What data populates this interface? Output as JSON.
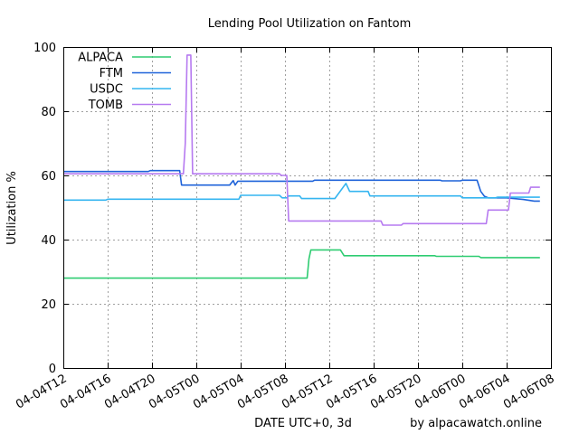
{
  "chart_data": {
    "type": "line",
    "title": "Lending Pool Utilization on Fantom",
    "xlabel": "DATE UTC+0, 3d",
    "ylabel": "Utilization %",
    "credit": "by alpacawatch.online",
    "ylim": [
      0,
      100
    ],
    "yticks": [
      0,
      20,
      40,
      60,
      80,
      100
    ],
    "xlim": [
      "2022-04-04T12:00",
      "2022-04-06T08:00"
    ],
    "xticks": [
      {
        "t": "2022-04-04T12:00",
        "label": "04-04T12"
      },
      {
        "t": "2022-04-04T16:00",
        "label": "04-04T16"
      },
      {
        "t": "2022-04-04T20:00",
        "label": "04-04T20"
      },
      {
        "t": "2022-04-05T00:00",
        "label": "04-05T00"
      },
      {
        "t": "2022-04-05T04:00",
        "label": "04-05T04"
      },
      {
        "t": "2022-04-05T08:00",
        "label": "04-05T08"
      },
      {
        "t": "2022-04-05T12:00",
        "label": "04-05T12"
      },
      {
        "t": "2022-04-05T16:00",
        "label": "04-05T16"
      },
      {
        "t": "2022-04-05T20:00",
        "label": "04-05T20"
      },
      {
        "t": "2022-04-06T00:00",
        "label": "04-06T00"
      },
      {
        "t": "2022-04-06T04:00",
        "label": "04-06T04"
      },
      {
        "t": "2022-04-06T08:00",
        "label": "04-06T08"
      }
    ],
    "grid": true,
    "legend": "top-left",
    "series": [
      {
        "name": "ALPACA",
        "color": "#2ecc71",
        "points": [
          [
            "2022-04-04T12:00",
            28
          ],
          [
            "2022-04-05T10:00",
            28
          ],
          [
            "2022-04-05T10:10",
            34
          ],
          [
            "2022-04-05T10:20",
            36.8
          ],
          [
            "2022-04-05T13:00",
            36.8
          ],
          [
            "2022-04-05T13:20",
            35
          ],
          [
            "2022-04-05T21:30",
            35
          ],
          [
            "2022-04-05T21:40",
            34.8
          ],
          [
            "2022-04-06T01:30",
            34.8
          ],
          [
            "2022-04-06T01:40",
            34.4
          ],
          [
            "2022-04-06T07:00",
            34.4
          ]
        ]
      },
      {
        "name": "FTM",
        "color": "#1f63d9",
        "points": [
          [
            "2022-04-04T12:00",
            61.2
          ],
          [
            "2022-04-04T19:40",
            61.2
          ],
          [
            "2022-04-04T19:50",
            61.5
          ],
          [
            "2022-04-04T22:30",
            61.5
          ],
          [
            "2022-04-04T22:40",
            57
          ],
          [
            "2022-04-05T03:00",
            57
          ],
          [
            "2022-04-05T03:20",
            58.4
          ],
          [
            "2022-04-05T03:30",
            57
          ],
          [
            "2022-04-05T03:45",
            58.2
          ],
          [
            "2022-04-05T10:30",
            58.2
          ],
          [
            "2022-04-05T10:40",
            58.5
          ],
          [
            "2022-04-05T22:00",
            58.5
          ],
          [
            "2022-04-05T22:10",
            58.3
          ],
          [
            "2022-04-05T23:50",
            58.3
          ],
          [
            "2022-04-06T00:00",
            58.5
          ],
          [
            "2022-04-06T01:20",
            58.5
          ],
          [
            "2022-04-06T01:40",
            55
          ],
          [
            "2022-04-06T02:00",
            53.5
          ],
          [
            "2022-04-06T02:20",
            53
          ],
          [
            "2022-04-06T04:00",
            53
          ],
          [
            "2022-04-06T05:30",
            52.5
          ],
          [
            "2022-04-06T06:30",
            52
          ],
          [
            "2022-04-06T07:00",
            52
          ]
        ]
      },
      {
        "name": "USDC",
        "color": "#35b5f0",
        "points": [
          [
            "2022-04-04T12:00",
            52.3
          ],
          [
            "2022-04-04T15:50",
            52.3
          ],
          [
            "2022-04-04T16:00",
            52.6
          ],
          [
            "2022-04-05T03:50",
            52.6
          ],
          [
            "2022-04-05T04:00",
            53.8
          ],
          [
            "2022-04-05T07:30",
            53.8
          ],
          [
            "2022-04-05T07:45",
            53
          ],
          [
            "2022-04-05T08:10",
            53
          ],
          [
            "2022-04-05T08:20",
            53.6
          ],
          [
            "2022-04-05T09:20",
            53.6
          ],
          [
            "2022-04-05T09:30",
            52.8
          ],
          [
            "2022-04-05T12:30",
            52.8
          ],
          [
            "2022-04-05T13:30",
            57.5
          ],
          [
            "2022-04-05T13:50",
            55
          ],
          [
            "2022-04-05T15:30",
            55
          ],
          [
            "2022-04-05T15:40",
            53.6
          ],
          [
            "2022-04-05T23:50",
            53.6
          ],
          [
            "2022-04-06T00:00",
            53
          ],
          [
            "2022-04-06T03:00",
            53
          ],
          [
            "2022-04-06T03:10",
            53.2
          ],
          [
            "2022-04-06T07:00",
            53.2
          ]
        ]
      },
      {
        "name": "TOMB",
        "color": "#b67af0",
        "points": [
          [
            "2022-04-04T12:00",
            60.5
          ],
          [
            "2022-04-04T22:50",
            60.5
          ],
          [
            "2022-04-04T23:00",
            70
          ],
          [
            "2022-04-04T23:10",
            97.5
          ],
          [
            "2022-04-04T23:30",
            97.5
          ],
          [
            "2022-04-04T23:40",
            60.5
          ],
          [
            "2022-04-05T07:30",
            60.5
          ],
          [
            "2022-04-05T07:40",
            60
          ],
          [
            "2022-04-05T08:10",
            60
          ],
          [
            "2022-04-05T08:20",
            45.8
          ],
          [
            "2022-04-05T16:40",
            45.8
          ],
          [
            "2022-04-05T16:50",
            44.5
          ],
          [
            "2022-04-05T18:30",
            44.5
          ],
          [
            "2022-04-05T18:40",
            45
          ],
          [
            "2022-04-06T02:10",
            45
          ],
          [
            "2022-04-06T02:20",
            49.2
          ],
          [
            "2022-04-06T04:10",
            49.2
          ],
          [
            "2022-04-06T04:20",
            54.5
          ],
          [
            "2022-04-06T06:00",
            54.5
          ],
          [
            "2022-04-06T06:10",
            56.3
          ],
          [
            "2022-04-06T07:00",
            56.3
          ]
        ]
      }
    ]
  }
}
